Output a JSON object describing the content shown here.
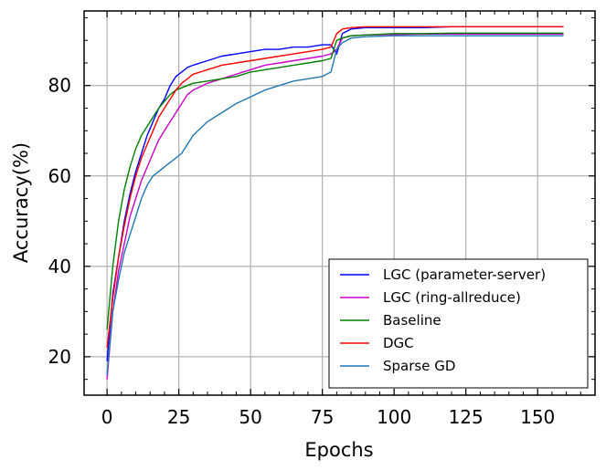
{
  "chart_data": {
    "type": "line",
    "title": "",
    "xlabel": "Epochs",
    "ylabel": "Accuracy(%)",
    "xlim": [
      -8,
      170
    ],
    "ylim": [
      11.5,
      96.5
    ],
    "xticks": [
      0,
      25,
      50,
      75,
      100,
      125,
      150
    ],
    "yticks": [
      20,
      40,
      60,
      80
    ],
    "xtick_labels": [
      "0",
      "25",
      "50",
      "75",
      "100",
      "125",
      "150"
    ],
    "ytick_labels": [
      "20",
      "40",
      "60",
      "80"
    ],
    "grid": true,
    "legend_position": "lower-right",
    "series": [
      {
        "name": "LGC (parameter-server)",
        "color": "#0000ff",
        "x": [
          0,
          2,
          4,
          6,
          8,
          10,
          12,
          14,
          16,
          18,
          20,
          22,
          24,
          26,
          28,
          30,
          35,
          40,
          45,
          50,
          55,
          60,
          65,
          70,
          75,
          78,
          80,
          82,
          85,
          90,
          100,
          110,
          120,
          130,
          140,
          150,
          159
        ],
        "values": [
          19,
          34,
          42,
          50,
          56,
          61,
          65,
          69,
          72,
          75,
          77,
          80,
          82,
          83,
          84,
          84.5,
          85.5,
          86.5,
          87,
          87.5,
          88,
          88,
          88.5,
          88.5,
          89,
          89,
          87,
          91.5,
          92.5,
          92.8,
          92.8,
          92.8,
          93,
          93,
          93,
          93,
          93
        ]
      },
      {
        "name": "LGC (ring-allreduce)",
        "color": "#cc00cc",
        "x": [
          0,
          2,
          4,
          6,
          8,
          10,
          12,
          14,
          16,
          18,
          20,
          22,
          24,
          26,
          28,
          30,
          35,
          40,
          45,
          50,
          55,
          60,
          65,
          70,
          75,
          78,
          80,
          82,
          85,
          90,
          100,
          110,
          120,
          130,
          140,
          150,
          159
        ],
        "values": [
          15,
          30,
          39,
          45,
          51,
          55,
          59,
          62,
          65,
          68,
          70,
          72,
          74,
          76,
          78,
          79,
          80.5,
          81.5,
          82.5,
          83.5,
          84.5,
          85,
          85.5,
          86,
          86.5,
          87,
          88,
          90.5,
          91,
          91.2,
          91.3,
          91.4,
          91.4,
          91.4,
          91.4,
          91.4,
          91.4
        ]
      },
      {
        "name": "Baseline",
        "color": "#008000",
        "x": [
          0,
          2,
          4,
          6,
          8,
          10,
          12,
          14,
          16,
          18,
          20,
          22,
          24,
          26,
          28,
          30,
          35,
          40,
          45,
          50,
          55,
          60,
          65,
          70,
          75,
          78,
          80,
          82,
          85,
          90,
          100,
          110,
          120,
          130,
          140,
          150,
          159
        ],
        "values": [
          26,
          40,
          50,
          57,
          62,
          66,
          69,
          71,
          73,
          75,
          76.5,
          78,
          79,
          79.5,
          80,
          80.5,
          81,
          81.5,
          82,
          83,
          83.5,
          84,
          84.5,
          85,
          85.5,
          86,
          90,
          90.5,
          91,
          91.2,
          91.5,
          91.5,
          91.6,
          91.6,
          91.6,
          91.6,
          91.6
        ]
      },
      {
        "name": "DGC",
        "color": "#ff0000",
        "x": [
          0,
          2,
          4,
          6,
          8,
          10,
          12,
          14,
          16,
          18,
          20,
          22,
          24,
          26,
          28,
          30,
          35,
          40,
          45,
          50,
          55,
          60,
          65,
          70,
          75,
          78,
          80,
          82,
          85,
          90,
          100,
          110,
          120,
          130,
          140,
          150,
          159
        ],
        "values": [
          22,
          33,
          42,
          49,
          55,
          60,
          64,
          67,
          70,
          73,
          75,
          77,
          79,
          80.5,
          81.5,
          82.5,
          83.5,
          84.5,
          85,
          85.5,
          86,
          86.5,
          87,
          87.5,
          88,
          88.5,
          91.5,
          92.5,
          92.8,
          93,
          93,
          93,
          93,
          93,
          93,
          93,
          93
        ]
      },
      {
        "name": "Sparse GD",
        "color": "#1f77b4",
        "x": [
          0,
          2,
          4,
          6,
          8,
          10,
          12,
          14,
          16,
          18,
          20,
          22,
          24,
          26,
          28,
          30,
          35,
          40,
          45,
          50,
          55,
          60,
          65,
          70,
          75,
          78,
          80,
          82,
          85,
          90,
          100,
          110,
          120,
          130,
          140,
          150,
          159
        ],
        "values": [
          16,
          30,
          37,
          43,
          47,
          51,
          55,
          58,
          60,
          61,
          62,
          63,
          64,
          65,
          67,
          69,
          72,
          74,
          76,
          77.5,
          79,
          80,
          81,
          81.5,
          82,
          83,
          88,
          89.5,
          90.5,
          90.8,
          91,
          91,
          91,
          91,
          91,
          91,
          91
        ]
      }
    ]
  }
}
